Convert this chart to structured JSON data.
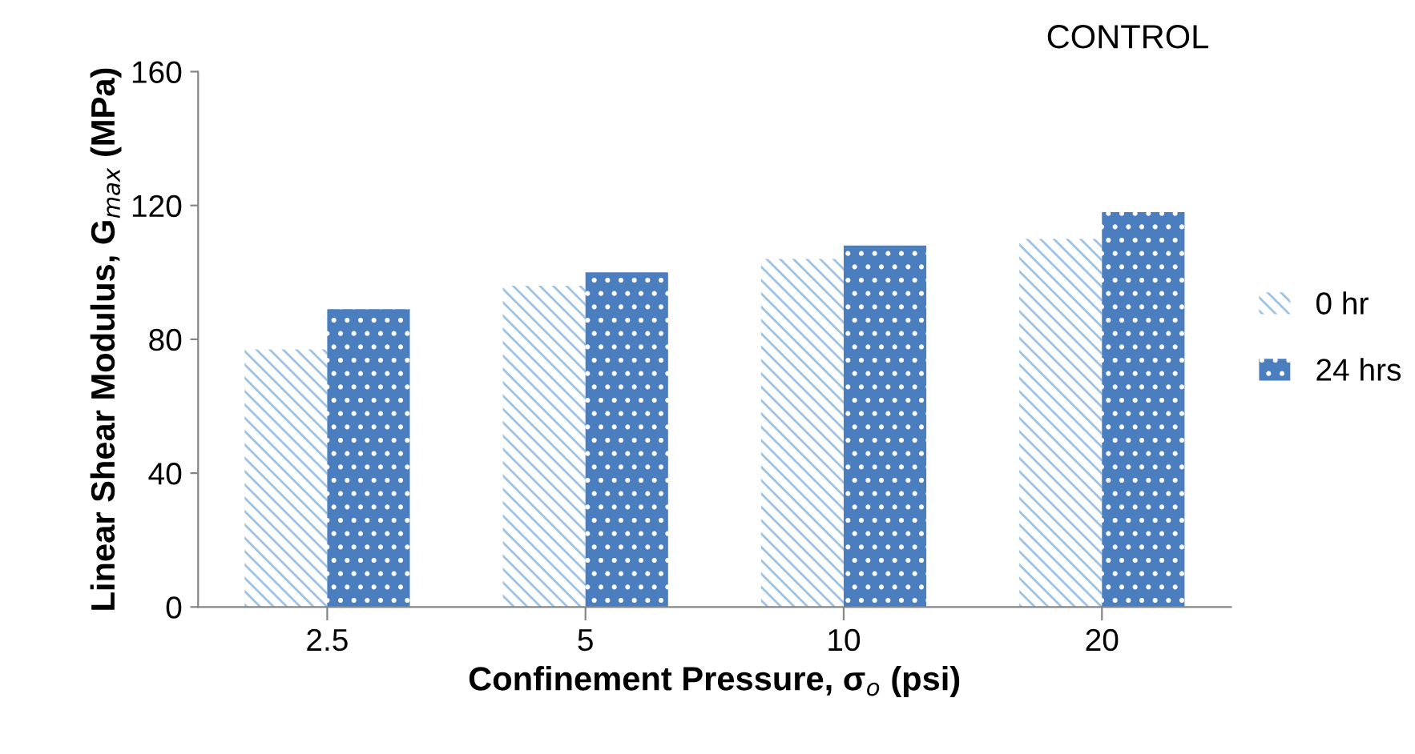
{
  "chart_data": {
    "type": "bar",
    "title": "CONTROL",
    "xlabel": "Confinement Pressure, σ$_{o}$ (psi)",
    "ylabel": "Linear Shear Modulus, G$_{max}$ (MPa)",
    "categories": [
      "2.5",
      "5",
      "10",
      "20"
    ],
    "series": [
      {
        "name": "0 hr",
        "color": "#9dc3e6",
        "values": [
          77,
          96,
          104,
          110
        ]
      },
      {
        "name": "24 hrs",
        "color": "#4a7ebf",
        "values": [
          89,
          100,
          108,
          118
        ]
      }
    ],
    "ylim": [
      0,
      160
    ],
    "yticks": [
      0,
      40,
      80,
      120,
      160
    ],
    "grid": false,
    "legend": "right"
  }
}
